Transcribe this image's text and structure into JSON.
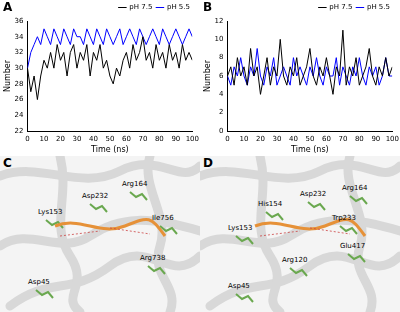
{
  "chart_data": [
    {
      "type": "line",
      "title": "A",
      "x_label": "Time (ns)",
      "y_label": "Number",
      "x": [
        0,
        2,
        4,
        6,
        8,
        10,
        12,
        14,
        16,
        18,
        20,
        22,
        24,
        26,
        28,
        30,
        32,
        34,
        36,
        38,
        40,
        42,
        44,
        46,
        48,
        50,
        52,
        54,
        56,
        58,
        60,
        62,
        64,
        66,
        68,
        70,
        72,
        74,
        76,
        78,
        80,
        82,
        84,
        86,
        88,
        90,
        92,
        94,
        96,
        98,
        100
      ],
      "series": [
        {
          "name": "pH 7.5",
          "color": "#000000",
          "values": [
            30,
            27,
            29,
            26,
            29,
            31,
            30,
            32,
            30,
            33,
            31,
            32,
            29,
            32,
            33,
            30,
            32,
            31,
            33,
            29,
            32,
            31,
            33,
            30,
            31,
            29,
            28,
            30,
            29,
            31,
            32,
            30,
            33,
            31,
            32,
            34,
            31,
            32,
            30,
            33,
            31,
            32,
            30,
            33,
            31,
            32,
            30,
            33,
            31,
            32,
            31
          ]
        },
        {
          "name": "pH 5.5",
          "color": "#0000ff",
          "values": [
            30,
            32,
            33,
            34,
            33,
            35,
            34,
            33,
            35,
            34,
            33,
            35,
            34,
            33,
            35,
            34,
            34,
            33,
            35,
            34,
            33,
            35,
            34,
            33,
            35,
            34,
            33,
            34,
            35,
            33,
            34,
            35,
            34,
            33,
            35,
            34,
            33,
            34,
            35,
            34,
            33,
            35,
            34,
            33,
            34,
            35,
            34,
            33,
            34,
            35,
            34
          ]
        }
      ],
      "xlim": [
        0,
        100
      ],
      "xticks": [
        0,
        10,
        20,
        30,
        40,
        50,
        60,
        70,
        80,
        90,
        100
      ],
      "ylim": [
        22,
        36
      ],
      "yticks": [
        22,
        24,
        26,
        28,
        30,
        32,
        34,
        36
      ],
      "grid": false,
      "legend": "upper right"
    },
    {
      "type": "line",
      "title": "B",
      "x_label": "Time (ns)",
      "y_label": "Number",
      "x": [
        0,
        2,
        4,
        6,
        8,
        10,
        12,
        14,
        16,
        18,
        20,
        22,
        24,
        26,
        28,
        30,
        32,
        34,
        36,
        38,
        40,
        42,
        44,
        46,
        48,
        50,
        52,
        54,
        56,
        58,
        60,
        62,
        64,
        66,
        68,
        70,
        72,
        74,
        76,
        78,
        80,
        82,
        84,
        86,
        88,
        90,
        92,
        94,
        96,
        98,
        100
      ],
      "series": [
        {
          "name": "pH 7.5",
          "color": "#000000",
          "values": [
            6,
            7,
            5,
            8,
            6,
            7,
            5,
            9,
            6,
            7,
            4,
            6,
            8,
            5,
            7,
            6,
            10,
            6,
            5,
            7,
            6,
            8,
            5,
            6,
            7,
            9,
            6,
            5,
            7,
            6,
            8,
            6,
            4,
            7,
            6,
            11,
            5,
            7,
            6,
            8,
            5,
            6,
            7,
            9,
            6,
            5,
            7,
            6,
            8,
            6,
            7
          ]
        },
        {
          "name": "pH 5.5",
          "color": "#0000ff",
          "values": [
            6,
            5,
            7,
            6,
            8,
            6,
            5,
            7,
            6,
            9,
            6,
            5,
            7,
            6,
            8,
            5,
            6,
            7,
            6,
            5,
            8,
            6,
            7,
            6,
            5,
            7,
            6,
            8,
            6,
            5,
            7,
            6,
            6,
            8,
            5,
            7,
            6,
            5,
            7,
            6,
            8,
            6,
            5,
            7,
            6,
            7,
            5,
            6,
            8,
            6,
            6
          ]
        }
      ],
      "xlim": [
        0,
        100
      ],
      "xticks": [
        0,
        10,
        20,
        30,
        40,
        50,
        60,
        70,
        80,
        90,
        100
      ],
      "ylim": [
        0,
        12
      ],
      "yticks": [
        0,
        2,
        4,
        6,
        8,
        10,
        12
      ],
      "grid": false,
      "legend": "upper right"
    }
  ],
  "structures": [
    {
      "title": "C",
      "residues": [
        "Lys153",
        "Asp232",
        "Arg164",
        "Ile756",
        "Arg738",
        "Asp45"
      ]
    },
    {
      "title": "D",
      "residues": [
        "His154",
        "Asp232",
        "Arg164",
        "Lys153",
        "Trp233",
        "Glu417",
        "Arg120",
        "Asp45"
      ]
    }
  ]
}
